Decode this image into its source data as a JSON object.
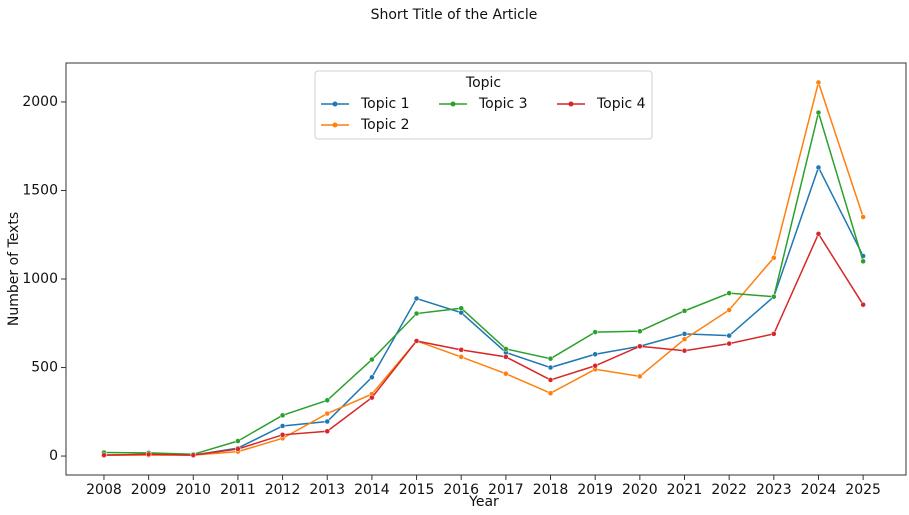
{
  "chart_data": {
    "type": "line",
    "title": "Short Title of the Article",
    "x_label": "Year",
    "y_label": "Number of Texts",
    "x": [
      2008,
      2009,
      2010,
      2011,
      2012,
      2013,
      2014,
      2015,
      2016,
      2017,
      2018,
      2019,
      2020,
      2021,
      2022,
      2023,
      2024,
      2025
    ],
    "series": [
      {
        "name": "Topic 1",
        "color": "#1f77b4",
        "values": [
          5,
          10,
          5,
          45,
          170,
          195,
          445,
          890,
          810,
          585,
          500,
          575,
          620,
          690,
          680,
          900,
          1630,
          1130
        ]
      },
      {
        "name": "Topic 2",
        "color": "#ff7f0e",
        "values": [
          5,
          5,
          5,
          25,
          100,
          240,
          350,
          650,
          560,
          465,
          355,
          490,
          450,
          660,
          825,
          1120,
          2110,
          1350
        ]
      },
      {
        "name": "Topic 3",
        "color": "#2ca02c",
        "values": [
          20,
          18,
          10,
          85,
          230,
          315,
          545,
          805,
          835,
          605,
          550,
          700,
          705,
          820,
          920,
          900,
          1940,
          1100
        ]
      },
      {
        "name": "Topic 4",
        "color": "#d62728",
        "values": [
          5,
          10,
          5,
          40,
          120,
          140,
          330,
          650,
          600,
          560,
          430,
          510,
          620,
          595,
          635,
          690,
          1255,
          855
        ]
      }
    ],
    "legend_title": "Topic",
    "legend_position": "upper center",
    "xlim": [
      2007.15,
      2025.96
    ],
    "ylim": [
      -107,
      2220
    ],
    "xticks": [
      2008,
      2009,
      2010,
      2011,
      2012,
      2013,
      2014,
      2015,
      2016,
      2017,
      2018,
      2019,
      2020,
      2021,
      2022,
      2023,
      2024,
      2025
    ],
    "yticks": [
      0,
      500,
      1000,
      1500,
      2000
    ],
    "grid": false
  }
}
